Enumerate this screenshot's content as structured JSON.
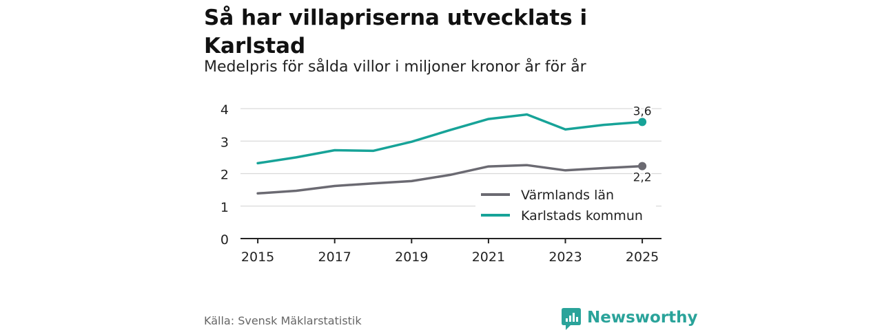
{
  "title": "Så har villapriserna utvecklats i Karlstad",
  "subtitle": "Medelpris för sålda villor i miljoner kronor år för år",
  "source": "Källa: Svensk Mäklarstatistik",
  "brand": {
    "name": "Newsworthy",
    "icon": "newsworthy-logo-icon",
    "color": "#2aa39a"
  },
  "chart_data": {
    "type": "line",
    "title": "Så har villapriserna utvecklats i Karlstad",
    "subtitle": "Medelpris för sålda villor i miljoner kronor år för år",
    "xlabel": "",
    "ylabel": "",
    "x": [
      2015,
      2016,
      2017,
      2018,
      2019,
      2020,
      2021,
      2022,
      2023,
      2024,
      2025
    ],
    "xticks": [
      "2015",
      "2017",
      "2019",
      "2021",
      "2023",
      "2025"
    ],
    "yticks": [
      "0",
      "1",
      "2",
      "3",
      "4"
    ],
    "xlim": [
      2014.55,
      2025.5
    ],
    "ylim": [
      0,
      4
    ],
    "grid": true,
    "legend_position": "bottom-right",
    "series": [
      {
        "name": "Värmlands län",
        "color": "#6b6a72",
        "values": [
          1.39,
          1.47,
          1.62,
          1.7,
          1.77,
          1.96,
          2.22,
          2.26,
          2.1,
          2.17,
          2.23
        ],
        "end_label": "2,2"
      },
      {
        "name": "Karlstads kommun",
        "color": "#17a398",
        "values": [
          2.32,
          2.5,
          2.72,
          2.7,
          2.98,
          3.34,
          3.68,
          3.82,
          3.36,
          3.5,
          3.59
        ],
        "end_label": "3,6"
      }
    ]
  }
}
